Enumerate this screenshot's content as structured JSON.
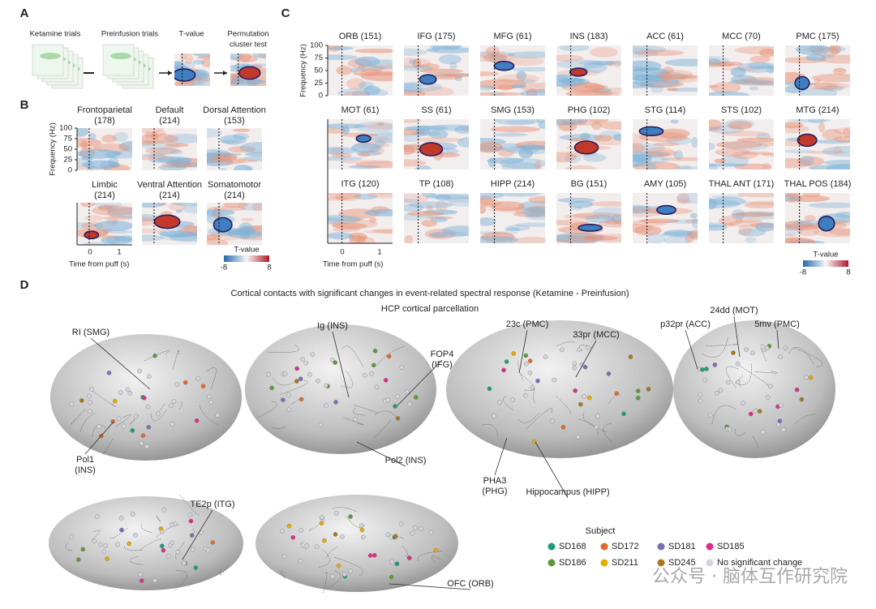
{
  "panel_a": {
    "label": "A",
    "items": [
      [
        "Ketamine trials"
      ],
      [
        "Preinfusion trials"
      ],
      [
        "T-value"
      ],
      [
        "Permutation",
        "cluster test"
      ]
    ]
  },
  "panel_b": {
    "label": "B",
    "ylabel": "Frequency (Hz)",
    "yticks": [
      "100",
      "75",
      "50",
      "25",
      "0"
    ],
    "xticks": [
      "0",
      "1"
    ],
    "xlabel": "Time from puff (s)",
    "networks": [
      [
        "Frontoparietal",
        "(178)"
      ],
      [
        "Default",
        "(214)"
      ],
      [
        "Dorsal Attention",
        "(153)"
      ],
      [
        "Limbic",
        "(214)"
      ],
      [
        "Ventral Attention",
        "(214)"
      ],
      [
        "Somatomotor",
        "(214)"
      ]
    ],
    "colorbar": {
      "label": "T-value",
      "min": "-8",
      "max": "8"
    }
  },
  "panel_c": {
    "label": "C",
    "ylabel": "Frequency (Hz)",
    "yticks": [
      "100",
      "75",
      "50",
      "25",
      "0"
    ],
    "xticks": [
      "0",
      "1"
    ],
    "xlabel": "Time from puff (s)",
    "regions": [
      "ORB (151)",
      "IFG (175)",
      "MFG (61)",
      "INS (183)",
      "ACC (61)",
      "MCC (70)",
      "PMC (175)",
      "MOT (61)",
      "SS (61)",
      "SMG (153)",
      "PHG (102)",
      "STG (114)",
      "STS (102)",
      "MTG (214)",
      "ITG (120)",
      "TP (108)",
      "HIPP (214)",
      "BG (151)",
      "AMY (105)",
      "THAL ANT (171)",
      "THAL POS (184)"
    ],
    "colorbar": {
      "label": "T-value",
      "min": "-8",
      "max": "8"
    }
  },
  "panel_d": {
    "label": "D",
    "title": "Cortical contacts with significant changes in event-related spectral response (Ketamine - Preinfusion)",
    "subtitle": "HCP cortical parcellation",
    "annotations": [
      [
        "RI (SMG)"
      ],
      [
        "Pol1",
        "(INS)"
      ],
      [
        "Ig (INS)"
      ],
      [
        "FOP4",
        "(IFG)"
      ],
      [
        "Pol2 (INS)"
      ],
      [
        "23c (PMC)"
      ],
      [
        "33pr (MCC)"
      ],
      [
        "PHA3",
        "(PHG)"
      ],
      [
        "Hippocampus (HIPP)"
      ],
      [
        "24dd (MOT)"
      ],
      [
        "p32pr (ACC)"
      ],
      [
        "5mv (PMC)"
      ],
      [
        "TE2p (ITG)"
      ],
      [
        "OFC (ORB)"
      ]
    ],
    "legend": {
      "title": "Subject",
      "items": [
        {
          "name": "SD168",
          "color": "#1a9e77"
        },
        {
          "name": "SD172",
          "color": "#e5692a"
        },
        {
          "name": "SD181",
          "color": "#7b6fb3"
        },
        {
          "name": "SD185",
          "color": "#dc2d8a"
        },
        {
          "name": "SD186",
          "color": "#5a9a3a"
        },
        {
          "name": "SD211",
          "color": "#e6ab02"
        },
        {
          "name": "SD245",
          "color": "#a6761d"
        },
        {
          "name": "No significant change",
          "color": "#d4d4dc"
        }
      ]
    }
  },
  "watermark": "公众号 · 脑体互作研究院"
}
